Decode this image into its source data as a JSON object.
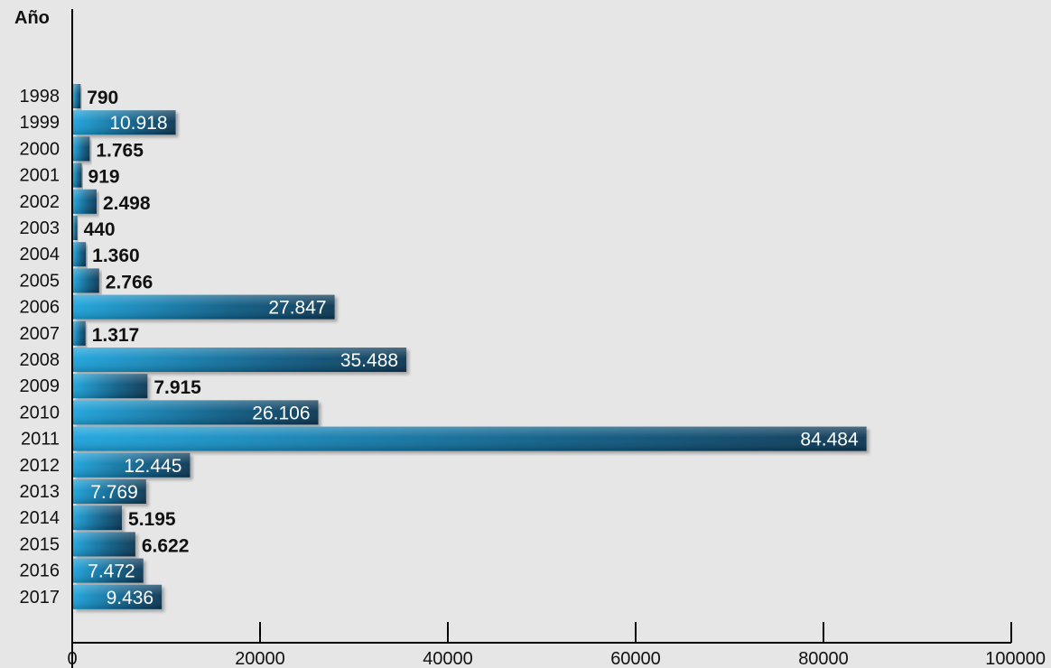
{
  "chart_data": {
    "type": "bar",
    "orientation": "horizontal",
    "ylabel": "Año",
    "xlim": [
      0,
      100000
    ],
    "xticks": [
      0,
      20000,
      40000,
      60000,
      80000,
      100000
    ],
    "xtick_labels": [
      "0",
      "20000",
      "40000",
      "60000",
      "80000",
      "100000"
    ],
    "categories": [
      "1998",
      "1999",
      "2000",
      "2001",
      "2002",
      "2003",
      "2004",
      "2005",
      "2006",
      "2007",
      "2008",
      "2009",
      "2010",
      "2011",
      "2012",
      "2013",
      "2014",
      "2015",
      "2016",
      "2017"
    ],
    "values": [
      790,
      10918,
      1765,
      919,
      2498,
      440,
      1360,
      2766,
      27847,
      1317,
      35488,
      7915,
      26106,
      84484,
      12445,
      7769,
      5195,
      6622,
      7472,
      9436
    ],
    "value_labels": [
      "790",
      "10.918",
      "1.765",
      "919",
      "2.498",
      "440",
      "1.360",
      "2.766",
      "27.847",
      "1.317",
      "35.488",
      "7.915",
      "26.106",
      "84.484",
      "12.445",
      "7.769",
      "5.195",
      "6.622",
      "7.472",
      "9.436"
    ],
    "label_inside": [
      false,
      true,
      false,
      false,
      false,
      false,
      false,
      false,
      true,
      false,
      true,
      false,
      true,
      true,
      true,
      true,
      false,
      false,
      true,
      true
    ],
    "bar_gradient": [
      "#1aa3dc",
      "#0b5c86",
      "#0a3552"
    ],
    "grid": false,
    "legend": "none"
  }
}
